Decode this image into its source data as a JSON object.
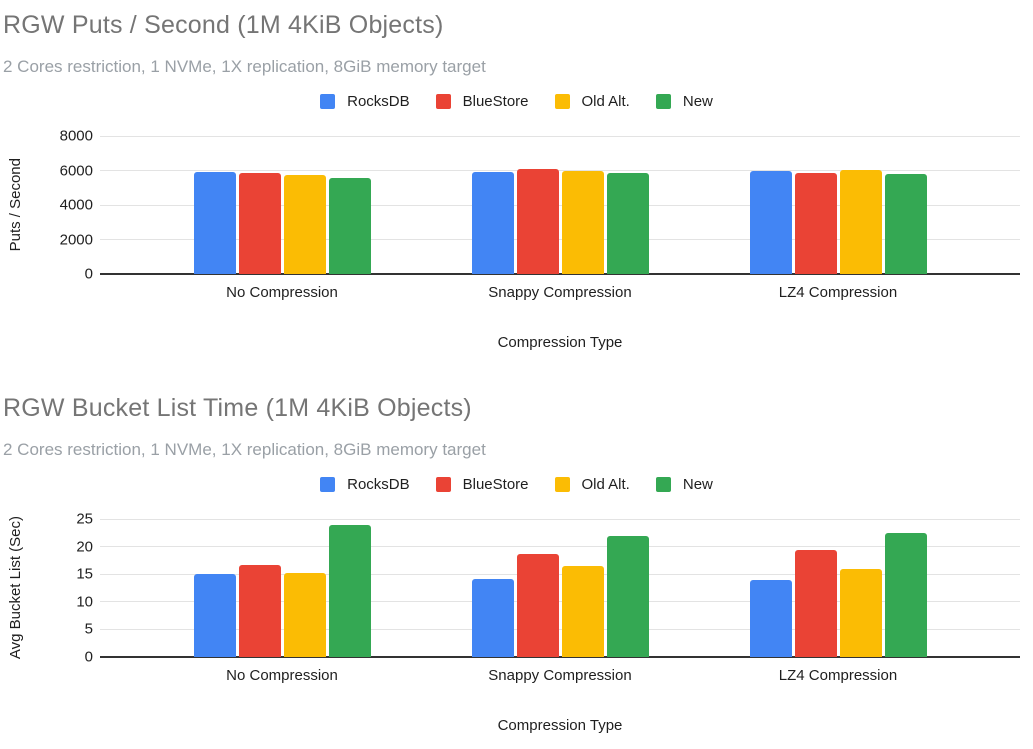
{
  "chart_data": [
    {
      "type": "bar",
      "title": "RGW Puts / Second (1M 4KiB Objects)",
      "subtitle": "2 Cores restriction, 1 NVMe, 1X replication, 8GiB memory target",
      "xlabel": "Compression Type",
      "ylabel": "Puts / Second",
      "ylim": [
        0,
        8000
      ],
      "y_ticks": [
        8000,
        6000,
        4000,
        2000,
        0
      ],
      "grid": true,
      "legend_position": "top",
      "categories": [
        "No Compression",
        "Snappy Compression",
        "LZ4 Compression"
      ],
      "series": [
        {
          "name": "RocksDB",
          "color": "#4285F4",
          "values": [
            5920,
            5940,
            5950
          ]
        },
        {
          "name": "BlueStore",
          "color": "#EA4335",
          "values": [
            5830,
            6060,
            5830
          ]
        },
        {
          "name": "Old Alt.",
          "color": "#FBBC04",
          "values": [
            5740,
            5970,
            6050
          ]
        },
        {
          "name": "New",
          "color": "#34A853",
          "values": [
            5570,
            5860,
            5780
          ]
        }
      ]
    },
    {
      "type": "bar",
      "title": "RGW Bucket List Time (1M 4KiB Objects)",
      "subtitle": "2 Cores restriction, 1 NVMe, 1X replication, 8GiB memory target",
      "xlabel": "Compression Type",
      "ylabel": "Avg Bucket List (Sec)",
      "ylim": [
        0,
        25
      ],
      "y_ticks": [
        25,
        20,
        15,
        10,
        5,
        0
      ],
      "grid": true,
      "legend_position": "top",
      "categories": [
        "No Compression",
        "Snappy Compression",
        "LZ4 Compression"
      ],
      "series": [
        {
          "name": "RocksDB",
          "color": "#4285F4",
          "values": [
            15.1,
            14.2,
            14.0
          ]
        },
        {
          "name": "BlueStore",
          "color": "#EA4335",
          "values": [
            16.7,
            18.7,
            19.3
          ]
        },
        {
          "name": "Old Alt.",
          "color": "#FBBC04",
          "values": [
            15.3,
            16.5,
            16.0
          ]
        },
        {
          "name": "New",
          "color": "#34A853",
          "values": [
            24.0,
            22.0,
            22.5
          ]
        }
      ]
    }
  ],
  "colors": {
    "title_gray": "#757575",
    "subtitle_gray": "#9aa0a6",
    "gridline": "#e3e3e3",
    "zero_axis": "#333333"
  }
}
